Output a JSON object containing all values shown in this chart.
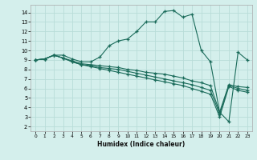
{
  "xlabel": "Humidex (Indice chaleur)",
  "background_color": "#d4efec",
  "grid_color": "#b8dcd8",
  "line_color": "#1a6b5a",
  "xlim": [
    -0.5,
    23.5
  ],
  "ylim": [
    1.5,
    14.8
  ],
  "xticks": [
    0,
    1,
    2,
    3,
    4,
    5,
    6,
    7,
    8,
    9,
    10,
    11,
    12,
    13,
    14,
    15,
    16,
    17,
    18,
    19,
    20,
    21,
    22,
    23
  ],
  "yticks": [
    2,
    3,
    4,
    5,
    6,
    7,
    8,
    9,
    10,
    11,
    12,
    13,
    14
  ],
  "lines": [
    {
      "x": [
        0,
        1,
        2,
        3,
        4,
        5,
        6,
        7,
        8,
        9,
        10,
        11,
        12,
        13,
        14,
        15,
        16,
        17,
        18,
        19,
        20,
        21,
        22,
        23
      ],
      "y": [
        9.0,
        9.1,
        9.5,
        9.5,
        9.1,
        8.8,
        8.8,
        9.3,
        10.5,
        11.0,
        11.2,
        12.0,
        13.0,
        13.0,
        14.1,
        14.2,
        13.5,
        13.8,
        10.0,
        8.8,
        3.5,
        2.5,
        9.8,
        9.0
      ]
    },
    {
      "x": [
        0,
        1,
        2,
        3,
        4,
        5,
        6,
        7,
        8,
        9,
        10,
        11,
        12,
        13,
        14,
        15,
        16,
        17,
        18,
        19,
        20,
        21,
        22,
        23
      ],
      "y": [
        9.0,
        9.1,
        9.5,
        9.2,
        8.9,
        8.6,
        8.5,
        8.4,
        8.3,
        8.2,
        8.0,
        7.9,
        7.7,
        7.6,
        7.5,
        7.3,
        7.1,
        6.8,
        6.6,
        6.3,
        3.5,
        6.4,
        6.2,
        6.1
      ]
    },
    {
      "x": [
        0,
        1,
        2,
        3,
        4,
        5,
        6,
        7,
        8,
        9,
        10,
        11,
        12,
        13,
        14,
        15,
        16,
        17,
        18,
        19,
        20,
        21,
        22,
        23
      ],
      "y": [
        9.0,
        9.1,
        9.5,
        9.2,
        8.8,
        8.5,
        8.4,
        8.2,
        8.1,
        8.0,
        7.8,
        7.6,
        7.4,
        7.2,
        7.0,
        6.8,
        6.6,
        6.4,
        6.1,
        5.8,
        3.3,
        6.3,
        6.0,
        5.8
      ]
    },
    {
      "x": [
        0,
        1,
        2,
        3,
        4,
        5,
        6,
        7,
        8,
        9,
        10,
        11,
        12,
        13,
        14,
        15,
        16,
        17,
        18,
        19,
        20,
        21,
        22,
        23
      ],
      "y": [
        9.0,
        9.1,
        9.5,
        9.2,
        8.8,
        8.5,
        8.3,
        8.1,
        7.9,
        7.7,
        7.5,
        7.3,
        7.1,
        6.9,
        6.7,
        6.5,
        6.3,
        6.0,
        5.7,
        5.4,
        3.0,
        6.2,
        5.8,
        5.6
      ]
    }
  ]
}
